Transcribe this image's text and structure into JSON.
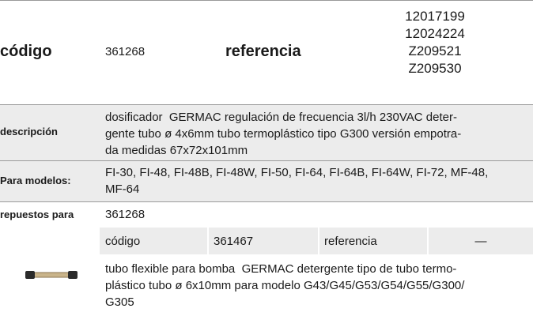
{
  "header": {
    "codigo_label": "código",
    "codigo": "361268",
    "referencia_label": "referencia",
    "referencias": [
      "12017199",
      "12024224",
      "Z209521",
      "Z209530"
    ]
  },
  "descripcion": {
    "label": "descripción",
    "lines": [
      "dosificador  GERMAC regulación de frecuencia 3l/h 230VAC deter-",
      "gente tubo ø 4x6mm tubo termoplástico tipo G300 versión empotra-",
      "da medidas 67x72x101mm"
    ]
  },
  "modelos": {
    "label": "Para modelos:",
    "lines": [
      "FI-30, FI-48, FI-48B, FI-48W, FI-50, FI-64, FI-64B, FI-64W, FI-72, MF-48,",
      "MF-64"
    ]
  },
  "repuestos": {
    "label": "repuestos para",
    "value": "361268"
  },
  "repuesto": {
    "codigo_label": "código",
    "codigo": "361467",
    "referencia_label": "referencia",
    "referencia": "—",
    "lines": [
      "tubo flexible para bomba  GERMAC detergente tipo de tubo termo-",
      "plástico tubo ø 6x10mm para modelo G43/G45/G53/G54/G55/G300/",
      "G305"
    ]
  }
}
